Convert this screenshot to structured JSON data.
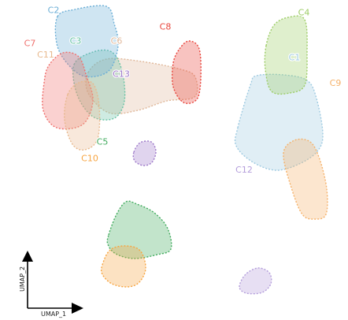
{
  "chart_data": {
    "type": "scatter",
    "subtype": "cluster-hull-map",
    "title": "",
    "xlabel": "UMAP_1",
    "ylabel": "UMAP_2",
    "ticks": false,
    "grid": false,
    "legend": "none",
    "clusters": [
      {
        "label": "C1",
        "center": [
          8.7,
          5.5
        ],
        "color": "#9ecae1"
      },
      {
        "label": "C2",
        "center": [
          -6.6,
          9.2
        ],
        "color": "#6baed6"
      },
      {
        "label": "C3",
        "center": [
          -5.2,
          6.8
        ],
        "color": "#66c2a4"
      },
      {
        "label": "C4",
        "center": [
          9.3,
          9.0
        ],
        "color": "#9ccc65"
      },
      {
        "label": "C5",
        "center": [
          -3.5,
          -1.1
        ],
        "color": "#41ab5d"
      },
      {
        "label": "C6",
        "center": [
          -2.6,
          6.8
        ],
        "color": "#e0b89a"
      },
      {
        "label": "C7",
        "center": [
          -8.1,
          6.6
        ],
        "color": "#ef6f6c"
      },
      {
        "label": "C8",
        "center": [
          0.5,
          7.9
        ],
        "color": "#e8453c"
      },
      {
        "label": "C9",
        "center": [
          11.3,
          3.5
        ],
        "color": "#f5b169"
      },
      {
        "label": "C10",
        "center": [
          -4.3,
          -2.4
        ],
        "color": "#f7a440"
      },
      {
        "label": "C11",
        "center": [
          -7.1,
          5.7
        ],
        "color": "#e8b98e"
      },
      {
        "label": "C12",
        "center": [
          5.5,
          -3.3
        ],
        "color": "#b39ddb"
      },
      {
        "label": "C13",
        "center": [
          -2.3,
          4.2
        ],
        "color": "#9e79c9"
      }
    ]
  }
}
